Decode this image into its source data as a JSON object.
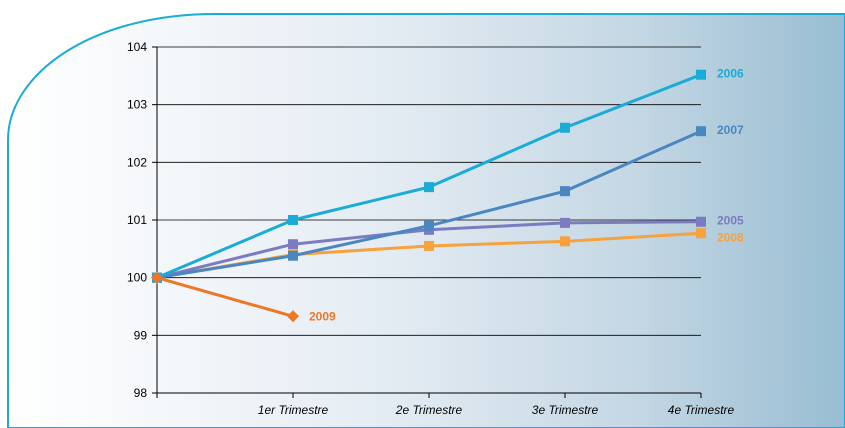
{
  "chart_data": {
    "type": "line",
    "title": "",
    "xlabel": "",
    "ylabel": "",
    "categories": [
      "",
      "1er Trimestre",
      "2e Trimestre",
      "3e Trimestre",
      "4e Trimestre"
    ],
    "ylim": [
      98,
      104
    ],
    "yticks": [
      98,
      99,
      100,
      101,
      102,
      103,
      104
    ],
    "grid": true,
    "series": [
      {
        "name": "2006",
        "color": "#1AABD6",
        "marker": "square",
        "values": [
          100,
          101.0,
          101.57,
          102.6,
          103.52
        ]
      },
      {
        "name": "2007",
        "color": "#4A86C0",
        "marker": "square",
        "values": [
          100,
          100.38,
          100.9,
          101.5,
          102.54
        ]
      },
      {
        "name": "2005",
        "color": "#7B7BC2",
        "marker": "square",
        "values": [
          100,
          100.58,
          100.83,
          100.95,
          100.97
        ]
      },
      {
        "name": "2008",
        "color": "#F7A23A",
        "marker": "square",
        "values": [
          100,
          100.4,
          100.55,
          100.63,
          100.77
        ]
      },
      {
        "name": "2009",
        "color": "#EE7726",
        "marker": "diamond",
        "values": [
          100,
          99.33,
          null,
          null,
          null
        ]
      }
    ]
  }
}
